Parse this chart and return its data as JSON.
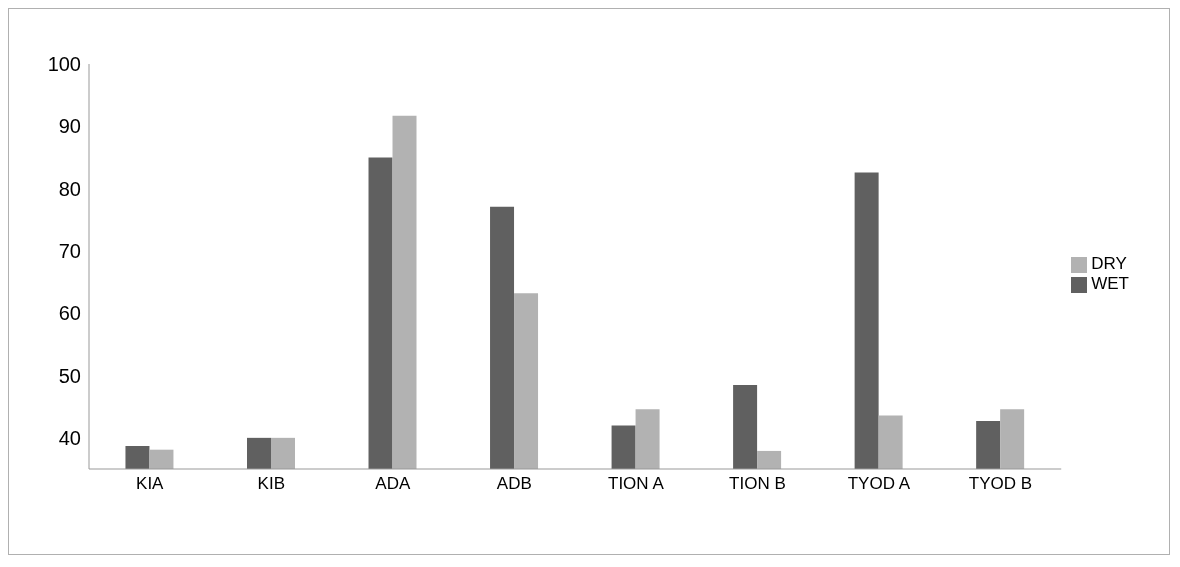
{
  "chart_data": {
    "type": "bar",
    "categories": [
      "KIA",
      "KIB",
      "ADA",
      "ADB",
      "TION A",
      "TION B",
      "TYOD A",
      "TYOD B"
    ],
    "series": [
      {
        "name": "WET",
        "color": "#606060",
        "values": [
          38.7,
          40,
          85,
          77.1,
          42,
          48.5,
          82.6,
          42.7
        ]
      },
      {
        "name": "DRY",
        "color": "#b2b2b2",
        "values": [
          38.1,
          40,
          91.7,
          63.2,
          44.6,
          37.9,
          43.6,
          44.6
        ]
      }
    ],
    "ylim": [
      35,
      100
    ],
    "yticks": [
      40,
      50,
      60,
      70,
      80,
      90,
      100
    ],
    "grid": false,
    "legend": "right"
  }
}
